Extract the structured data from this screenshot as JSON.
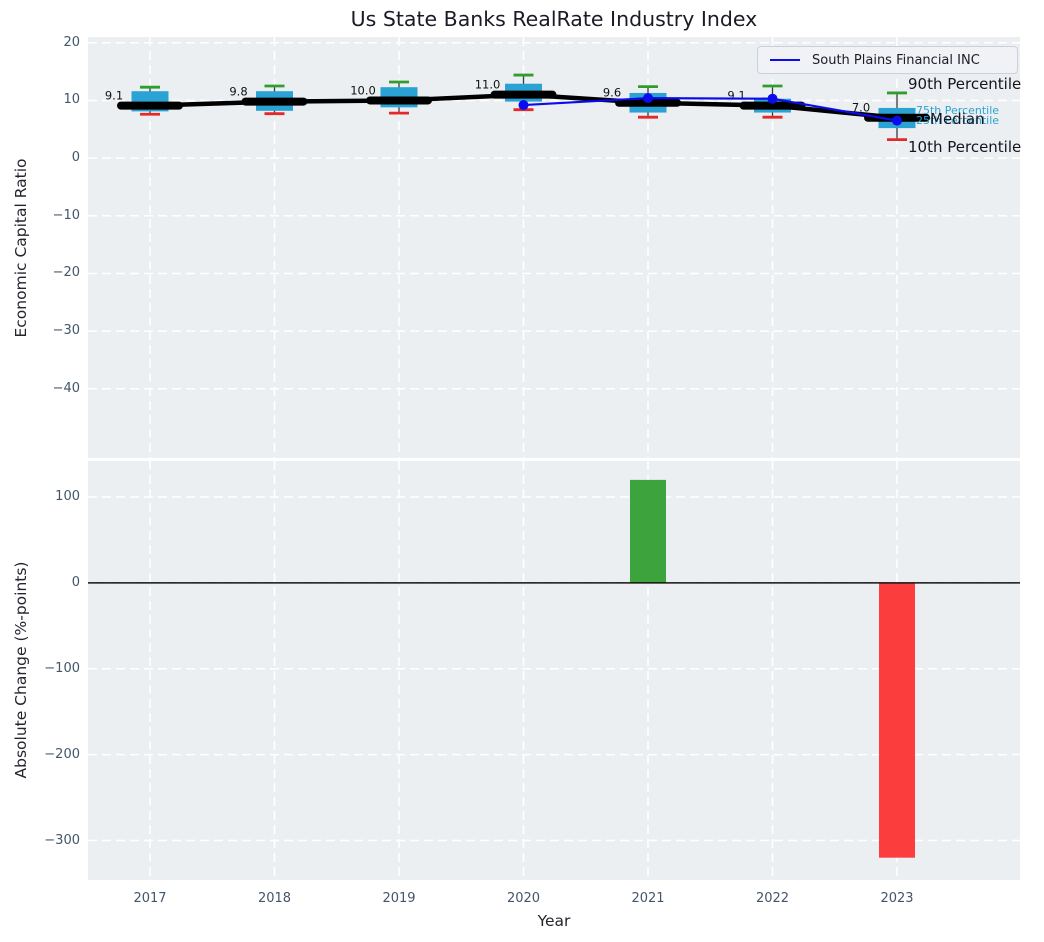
{
  "figure": {
    "title": "Us State Banks RealRate Industry Index",
    "plot_background": "#eceff1"
  },
  "legend": {
    "label": "South Plains Financial INC"
  },
  "percentile_labels": {
    "p90": "90th Percentile",
    "p75": "75th Percentile",
    "median": "Median",
    "p25": "25th Percentile",
    "p10": "10th Percentile"
  },
  "axis_labels": {
    "top_y": "Economic Capital Ratio",
    "bottom_y": "Absolute Change (%-points)",
    "x": "Year"
  },
  "colors": {
    "box_fill": "#2aa3d4",
    "median_line": "#000000",
    "whisker": "#3a3a3a",
    "company_line": "#0b0bee",
    "p90_cap": "#2f9e2f",
    "p10_cap": "#e32929",
    "bar_positive": "#3da43d",
    "bar_negative": "#fb3d3d",
    "grid": "#ffffff",
    "zero_line": "#111111",
    "tick_text": "#43566a"
  },
  "chart_data": [
    {
      "type": "boxplot_with_line",
      "title": "Us State Banks RealRate Industry Index",
      "xlabel": "Year",
      "ylabel": "Economic Capital Ratio",
      "ylim": [
        -52,
        21
      ],
      "yticks": [
        20,
        10,
        0,
        -10,
        -20,
        -30,
        -40
      ],
      "categories": [
        "2017",
        "2018",
        "2019",
        "2020",
        "2021",
        "2022",
        "2023"
      ],
      "grid": true,
      "legend_position": "upper right",
      "boxes": [
        {
          "year": "2017",
          "p10": 7.6,
          "q1": 8.1,
          "median": 9.1,
          "q3": 11.6,
          "p90": 12.3,
          "label": "9.1"
        },
        {
          "year": "2018",
          "p10": 7.7,
          "q1": 8.2,
          "median": 9.8,
          "q3": 11.6,
          "p90": 12.5,
          "label": "9.8"
        },
        {
          "year": "2019",
          "p10": 7.8,
          "q1": 8.8,
          "median": 10.0,
          "q3": 12.3,
          "p90": 13.2,
          "label": "10.0"
        },
        {
          "year": "2020",
          "p10": 8.4,
          "q1": 9.8,
          "median": 11.0,
          "q3": 12.9,
          "p90": 14.4,
          "label": "11.0"
        },
        {
          "year": "2021",
          "p10": 7.1,
          "q1": 7.9,
          "median": 9.6,
          "q3": 11.3,
          "p90": 12.4,
          "label": "9.6"
        },
        {
          "year": "2022",
          "p10": 7.1,
          "q1": 7.9,
          "median": 9.1,
          "q3": 10.3,
          "p90": 12.5,
          "label": "9.1"
        },
        {
          "year": "2023",
          "p10": 3.2,
          "q1": 5.2,
          "median": 7.0,
          "q3": 8.7,
          "p90": 11.3,
          "label": "7.0"
        }
      ],
      "series": [
        {
          "name": "South Plains Financial INC",
          "x": [
            "2020",
            "2021",
            "2022",
            "2023"
          ],
          "y": [
            9.2,
            10.4,
            10.3,
            6.5
          ]
        }
      ]
    },
    {
      "type": "bar",
      "xlabel": "Year",
      "ylabel": "Absolute Change (%-points)",
      "ylim": [
        -346,
        142
      ],
      "yticks": [
        100,
        0,
        -100,
        -200,
        -300
      ],
      "categories": [
        "2017",
        "2018",
        "2019",
        "2020",
        "2021",
        "2022",
        "2023"
      ],
      "values": [
        0,
        0,
        0,
        0,
        120,
        0,
        -320
      ],
      "zero_line": true,
      "grid": true
    }
  ]
}
